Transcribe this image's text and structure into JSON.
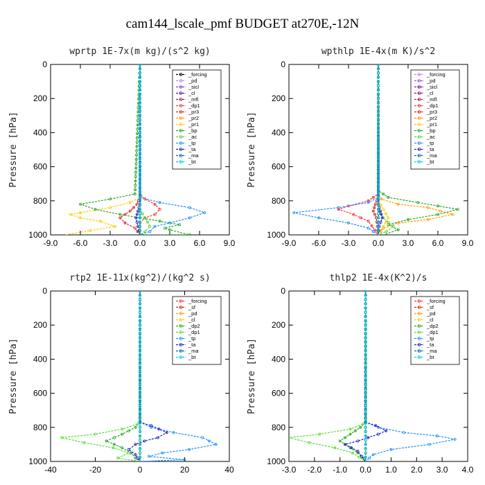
{
  "title": "cam144_lscale_pmf  BUDGET at270E,-12N",
  "chart_data": [
    {
      "type": "line",
      "title": "wprtp  1E-7x(m kg)/(s^2 kg)",
      "ylabel": "Pressure [hPa]",
      "xlim": [
        -9,
        9
      ],
      "ylim": [
        1000,
        0
      ],
      "xticks": [
        "-9.0",
        "-6.0",
        "-3.0",
        "0.0",
        "3.0",
        "6.0",
        "9.0"
      ],
      "yticks": [
        "0",
        "200",
        "400",
        "600",
        "800",
        "1000"
      ],
      "legend": "top-right",
      "series": [
        {
          "name": "_forcing",
          "color": "#000000",
          "x": [
            0,
            0
          ],
          "y": [
            0,
            1000
          ]
        },
        {
          "name": "_pd",
          "color": "#c080ff",
          "x": [
            0,
            0
          ],
          "y": [
            0,
            1000
          ]
        },
        {
          "name": "_sicl",
          "color": "#8040c0",
          "x": [
            0,
            0
          ],
          "y": [
            0,
            1000
          ]
        },
        {
          "name": "_cl",
          "color": "#6a0dad",
          "x": [
            0,
            0
          ],
          "y": [
            0,
            1000
          ]
        },
        {
          "name": "_mfl",
          "color": "#a0204a",
          "x": [
            0,
            0
          ],
          "y": [
            0,
            1000
          ]
        },
        {
          "name": "_dp1",
          "color": "#ff3030",
          "x": [
            0,
            0,
            0,
            0.5,
            1.5,
            2.0,
            1.5,
            0.5,
            0,
            0
          ],
          "y": [
            0,
            700,
            760,
            790,
            820,
            850,
            880,
            900,
            930,
            1000
          ]
        },
        {
          "name": "_pr3",
          "color": "#e02020",
          "x": [
            0,
            0,
            -0.3,
            -1.0,
            -2.0,
            -1.5,
            -0.5,
            0
          ],
          "y": [
            0,
            780,
            820,
            860,
            900,
            930,
            960,
            1000
          ]
        },
        {
          "name": "_pr2",
          "color": "#ff9900",
          "x": [
            0,
            0,
            0,
            0,
            0
          ],
          "y": [
            0,
            800,
            900,
            950,
            1000
          ]
        },
        {
          "name": "_pr1",
          "color": "#ffcc00",
          "x": [
            0,
            0,
            -1,
            -3,
            -6,
            -7,
            -6,
            -4,
            -2.5,
            -7.5
          ],
          "y": [
            0,
            780,
            810,
            840,
            870,
            880,
            900,
            920,
            950,
            1000
          ]
        },
        {
          "name": "_bp",
          "color": "#22aa22",
          "x": [
            0,
            -0.5,
            -3,
            -6,
            -4.5,
            -2,
            0,
            2,
            4,
            2.5,
            3,
            5,
            0
          ],
          "y": [
            0,
            760,
            790,
            820,
            850,
            880,
            900,
            920,
            940,
            960,
            970,
            1000,
            1000
          ]
        },
        {
          "name": "_ac",
          "color": "#66cc44",
          "x": [
            0,
            0,
            0.5,
            1,
            0.5,
            0
          ],
          "y": [
            0,
            850,
            900,
            950,
            980,
            1000
          ]
        },
        {
          "name": "_tp",
          "color": "#1e90ff",
          "x": [
            0,
            0,
            2,
            5,
            6.5,
            5,
            3,
            1.5,
            1,
            0
          ],
          "y": [
            0,
            780,
            810,
            840,
            870,
            900,
            930,
            950,
            980,
            1000
          ]
        },
        {
          "name": "_ta",
          "color": "#2020c0",
          "x": [
            0,
            0,
            -0.2,
            -0.4,
            -0.2,
            0
          ],
          "y": [
            0,
            820,
            860,
            900,
            950,
            1000
          ]
        },
        {
          "name": "_ma",
          "color": "#0066aa",
          "x": [
            0,
            0
          ],
          "y": [
            0,
            1000
          ]
        },
        {
          "name": "_bt",
          "color": "#00ccdd",
          "x": [
            0,
            0
          ],
          "y": [
            0,
            1000
          ]
        }
      ]
    },
    {
      "type": "line",
      "title": "wpthlp  1E-4x(m K)/s^2",
      "ylabel": "Pressure [hPa]",
      "xlim": [
        -9,
        9
      ],
      "ylim": [
        1000,
        0
      ],
      "xticks": [
        "-9.0",
        "-6.0",
        "-3.0",
        "0.0",
        "3.0",
        "6.0",
        "9.0"
      ],
      "yticks": [
        "0",
        "200",
        "400",
        "600",
        "800",
        "1000"
      ],
      "legend": "top-right",
      "series": [
        {
          "name": "_forcing",
          "color": "#c080ff",
          "x": [
            0,
            0
          ],
          "y": [
            0,
            1000
          ]
        },
        {
          "name": "_pd",
          "color": "#9a50e0",
          "x": [
            0,
            0
          ],
          "y": [
            0,
            1000
          ]
        },
        {
          "name": "_sicl",
          "color": "#6a0dad",
          "x": [
            0,
            0
          ],
          "y": [
            0,
            1000
          ]
        },
        {
          "name": "_cl",
          "color": "#8b1a4a",
          "x": [
            0,
            0
          ],
          "y": [
            0,
            1000
          ]
        },
        {
          "name": "_mfl",
          "color": "#a0204a",
          "x": [
            0,
            0
          ],
          "y": [
            0,
            1000
          ]
        },
        {
          "name": "_dp1",
          "color": "#ff3030",
          "x": [
            0,
            0,
            -1,
            -3,
            -4,
            -2.5,
            -1,
            0
          ],
          "y": [
            0,
            760,
            800,
            830,
            850,
            880,
            920,
            1000
          ]
        },
        {
          "name": "_pr3",
          "color": "#e02020",
          "x": [
            0,
            0,
            -0.3,
            -0.5,
            -0.2,
            0
          ],
          "y": [
            0,
            780,
            820,
            860,
            900,
            1000
          ]
        },
        {
          "name": "_pr2",
          "color": "#ff9900",
          "x": [
            0,
            0,
            0.3,
            2,
            5,
            7.5,
            5,
            2,
            0.5,
            0
          ],
          "y": [
            0,
            760,
            790,
            820,
            840,
            880,
            910,
            930,
            960,
            1000
          ]
        },
        {
          "name": "_pr1",
          "color": "#ffcc00",
          "x": [
            0,
            0,
            0.5,
            1,
            0.5,
            0
          ],
          "y": [
            0,
            800,
            850,
            900,
            950,
            1000
          ]
        },
        {
          "name": "_bp",
          "color": "#22aa22",
          "x": [
            0,
            0,
            1,
            4,
            8,
            6,
            3,
            1,
            2,
            0.5
          ],
          "y": [
            0,
            740,
            780,
            810,
            850,
            880,
            910,
            940,
            970,
            1000
          ]
        },
        {
          "name": "_ac",
          "color": "#66cc44",
          "x": [
            0,
            0,
            0.5,
            1.5,
            0.8,
            0
          ],
          "y": [
            0,
            850,
            900,
            950,
            980,
            1000
          ]
        },
        {
          "name": "_tp",
          "color": "#1e90ff",
          "x": [
            0,
            0,
            -1,
            -4,
            -8.5,
            -6,
            -3,
            -1,
            0
          ],
          "y": [
            0,
            780,
            810,
            840,
            870,
            900,
            930,
            960,
            1000
          ]
        },
        {
          "name": "_ta",
          "color": "#2020c0",
          "x": [
            0,
            0,
            0.2,
            0.4,
            0.1,
            0
          ],
          "y": [
            0,
            820,
            860,
            900,
            950,
            1000
          ]
        },
        {
          "name": "_ma",
          "color": "#0066aa",
          "x": [
            0,
            0
          ],
          "y": [
            0,
            1000
          ]
        },
        {
          "name": "_bt",
          "color": "#00ccdd",
          "x": [
            0,
            0
          ],
          "y": [
            0,
            1000
          ]
        }
      ]
    },
    {
      "type": "line",
      "title": "rtp2  1E-11x(kg^2)/(kg^2 s)",
      "ylabel": "Pressure [hPa]",
      "xlim": [
        -40,
        40
      ],
      "ylim": [
        1000,
        0
      ],
      "xticks": [
        "-40",
        "-20",
        "0",
        "20",
        "40"
      ],
      "yticks": [
        "0",
        "200",
        "400",
        "600",
        "800",
        "1000"
      ],
      "legend": "top-right",
      "series": [
        {
          "name": "_forcing",
          "color": "#ff3030",
          "x": [
            0,
            0
          ],
          "y": [
            0,
            1000
          ]
        },
        {
          "name": "_sf",
          "color": "#e02020",
          "x": [
            0,
            0
          ],
          "y": [
            0,
            1000
          ]
        },
        {
          "name": "_pd",
          "color": "#ff9900",
          "x": [
            0,
            0
          ],
          "y": [
            0,
            1000
          ]
        },
        {
          "name": "_cl",
          "color": "#ffcc00",
          "x": [
            0,
            0
          ],
          "y": [
            0,
            1000
          ]
        },
        {
          "name": "_dp2",
          "color": "#22aa22",
          "x": [
            0,
            0,
            -2,
            -8,
            -15,
            -8,
            -4,
            -2,
            0
          ],
          "y": [
            0,
            770,
            800,
            840,
            880,
            920,
            950,
            980,
            1000
          ]
        },
        {
          "name": "_dp1",
          "color": "#55dd33",
          "x": [
            0,
            0,
            -1,
            -8,
            -20,
            -35,
            -25,
            -12,
            -5,
            -10,
            0
          ],
          "y": [
            0,
            760,
            780,
            810,
            840,
            860,
            890,
            920,
            950,
            980,
            1000
          ]
        },
        {
          "name": "_tp",
          "color": "#1e90ff",
          "x": [
            0,
            0,
            5,
            15,
            28,
            34,
            22,
            10,
            4,
            20,
            0
          ],
          "y": [
            0,
            770,
            800,
            830,
            860,
            900,
            930,
            950,
            970,
            990,
            1000
          ]
        },
        {
          "name": "_ta",
          "color": "#2020c0",
          "x": [
            0,
            0,
            5,
            12,
            8,
            2,
            -2,
            -5,
            -2,
            0
          ],
          "y": [
            0,
            770,
            790,
            830,
            860,
            880,
            900,
            930,
            960,
            1000
          ]
        },
        {
          "name": "_ma",
          "color": "#0066aa",
          "x": [
            0,
            0
          ],
          "y": [
            0,
            1000
          ]
        },
        {
          "name": "_bt",
          "color": "#00ccdd",
          "x": [
            0,
            0
          ],
          "y": [
            0,
            1000
          ]
        }
      ]
    },
    {
      "type": "line",
      "title": "thlp2  1E-4x(K^2)/s",
      "ylabel": "Pressure [hPa]",
      "xlim": [
        -3,
        4
      ],
      "ylim": [
        1000,
        0
      ],
      "xticks": [
        "-3.0",
        "-2.0",
        "-1.0",
        "0.0",
        "1.0",
        "2.0",
        "3.0",
        "4.0"
      ],
      "yticks": [
        "0",
        "200",
        "400",
        "600",
        "800",
        "1000"
      ],
      "legend": "top-right",
      "series": [
        {
          "name": "_forcing",
          "color": "#ff3030",
          "x": [
            0,
            0
          ],
          "y": [
            0,
            1000
          ]
        },
        {
          "name": "_sf",
          "color": "#e02020",
          "x": [
            0,
            0
          ],
          "y": [
            0,
            1000
          ]
        },
        {
          "name": "_pd",
          "color": "#ff9900",
          "x": [
            0,
            0
          ],
          "y": [
            0,
            1000
          ]
        },
        {
          "name": "_cl",
          "color": "#ffcc00",
          "x": [
            0,
            0
          ],
          "y": [
            0,
            1000
          ]
        },
        {
          "name": "_dp2",
          "color": "#22aa22",
          "x": [
            0,
            0,
            -0.2,
            -0.6,
            -1.0,
            -0.6,
            -0.3,
            -0.1,
            0
          ],
          "y": [
            0,
            770,
            800,
            840,
            880,
            920,
            950,
            980,
            1000
          ]
        },
        {
          "name": "_dp1",
          "color": "#55dd33",
          "x": [
            0,
            0,
            -0.1,
            -0.6,
            -1.8,
            -3.0,
            -2.2,
            -1.2,
            -0.5,
            0
          ],
          "y": [
            0,
            760,
            780,
            810,
            840,
            860,
            890,
            920,
            950,
            1000
          ]
        },
        {
          "name": "_tp",
          "color": "#1e90ff",
          "x": [
            0,
            0,
            0.5,
            1.5,
            2.8,
            3.5,
            2.5,
            1.0,
            0.3,
            0
          ],
          "y": [
            0,
            770,
            800,
            830,
            850,
            870,
            900,
            930,
            960,
            1000
          ]
        },
        {
          "name": "_ta",
          "color": "#2020c0",
          "x": [
            0,
            0,
            0.4,
            0.8,
            0.5,
            0.1,
            -0.3,
            -0.8,
            -0.3,
            0
          ],
          "y": [
            0,
            770,
            790,
            820,
            840,
            860,
            880,
            900,
            940,
            1000
          ]
        },
        {
          "name": "_ma",
          "color": "#0066aa",
          "x": [
            0,
            0
          ],
          "y": [
            0,
            1000
          ]
        },
        {
          "name": "_bt",
          "color": "#00ccdd",
          "x": [
            0,
            0
          ],
          "y": [
            0,
            1000
          ]
        }
      ]
    }
  ]
}
